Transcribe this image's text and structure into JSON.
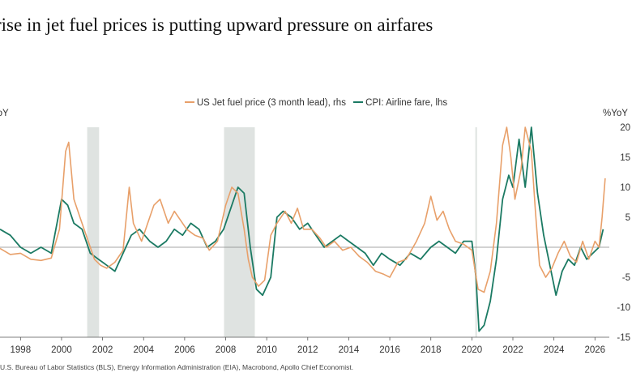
{
  "chart_data": {
    "type": "line",
    "title": "rise in jet fuel prices is putting upward pressure on airfares",
    "left_unit": "YoY",
    "right_unit": "%YoY",
    "colors": {
      "jet_fuel": "#e8a06a",
      "airline_fare": "#1b7a63",
      "recession": "#dfe3e1",
      "zero_line": "#888888"
    },
    "legend_position": "top-center",
    "grid": false,
    "x_range": [
      1997.0,
      2026.7
    ],
    "y_right_range": [
      -150,
      200
    ],
    "y_left_range": [
      -15,
      20
    ],
    "x_ticks": [
      "1998",
      "2000",
      "2002",
      "2004",
      "2006",
      "2008",
      "2010",
      "2012",
      "2014",
      "2016",
      "2018",
      "2020",
      "2022",
      "2024",
      "2026"
    ],
    "y_right_ticks": [
      "20",
      "15",
      "10",
      "5",
      "-5",
      "-10",
      "-15"
    ],
    "recession_bands": [
      [
        2001.25,
        2001.83
      ],
      [
        2007.92,
        2009.42
      ],
      [
        2020.17,
        2020.25
      ]
    ],
    "series": [
      {
        "name": "US Jet fuel price (3 month lead), rhs",
        "axis": "right",
        "x": [
          1997.0,
          1997.5,
          1998.0,
          1998.5,
          1999.0,
          1999.5,
          1999.9,
          2000.2,
          2000.35,
          2000.6,
          2000.9,
          2001.3,
          2001.6,
          2001.9,
          2002.2,
          2002.6,
          2003.0,
          2003.3,
          2003.5,
          2003.9,
          2004.2,
          2004.5,
          2004.8,
          2005.2,
          2005.5,
          2005.8,
          2006.1,
          2006.5,
          2006.9,
          2007.2,
          2007.6,
          2008.0,
          2008.3,
          2008.6,
          2008.9,
          2009.1,
          2009.3,
          2009.6,
          2009.9,
          2010.2,
          2010.5,
          2010.9,
          2011.2,
          2011.5,
          2011.8,
          2012.2,
          2012.6,
          2012.9,
          2013.3,
          2013.7,
          2014.1,
          2014.5,
          2014.9,
          2015.3,
          2015.7,
          2016.0,
          2016.4,
          2016.8,
          2017.3,
          2017.7,
          2018.0,
          2018.3,
          2018.6,
          2018.9,
          2019.2,
          2019.6,
          2020.0,
          2020.3,
          2020.6,
          2020.9,
          2021.2,
          2021.5,
          2021.7,
          2021.9,
          2022.1,
          2022.4,
          2022.6,
          2022.9,
          2023.1,
          2023.3,
          2023.6,
          2023.9,
          2024.2,
          2024.5,
          2024.8,
          2025.1,
          2025.4,
          2025.7,
          2026.0,
          2026.2,
          2026.35,
          2026.5
        ],
        "values": [
          -2,
          -12,
          -10,
          -20,
          -22,
          -18,
          30,
          160,
          175,
          80,
          50,
          10,
          -20,
          -30,
          -35,
          -25,
          -5,
          100,
          40,
          10,
          40,
          70,
          80,
          40,
          60,
          45,
          30,
          20,
          15,
          -5,
          10,
          70,
          100,
          90,
          30,
          -20,
          -50,
          -65,
          -55,
          20,
          40,
          60,
          40,
          65,
          30,
          30,
          15,
          0,
          10,
          -5,
          0,
          -15,
          -25,
          -40,
          -45,
          -50,
          -25,
          -20,
          10,
          40,
          85,
          45,
          60,
          30,
          10,
          5,
          -5,
          -70,
          -75,
          -40,
          40,
          170,
          205,
          150,
          80,
          130,
          200,
          160,
          60,
          -30,
          -50,
          -35,
          -10,
          10,
          -15,
          -25,
          10,
          -20,
          10,
          0,
          50,
          115
        ]
      },
      {
        "name": "CPI: Airline fare, lhs",
        "axis": "left",
        "x": [
          1997.0,
          1997.5,
          1998.0,
          1998.5,
          1999.0,
          1999.5,
          2000.0,
          2000.3,
          2000.6,
          2001.0,
          2001.4,
          2001.8,
          2002.2,
          2002.6,
          2003.0,
          2003.4,
          2003.8,
          2004.3,
          2004.7,
          2005.1,
          2005.5,
          2005.9,
          2006.3,
          2006.7,
          2007.1,
          2007.5,
          2007.9,
          2008.3,
          2008.6,
          2008.9,
          2009.2,
          2009.5,
          2009.8,
          2010.2,
          2010.5,
          2010.8,
          2011.2,
          2011.6,
          2012.0,
          2012.4,
          2012.8,
          2013.2,
          2013.6,
          2014.0,
          2014.4,
          2014.8,
          2015.2,
          2015.6,
          2016.0,
          2016.5,
          2017.0,
          2017.5,
          2018.0,
          2018.4,
          2018.8,
          2019.2,
          2019.6,
          2020.0,
          2020.2,
          2020.35,
          2020.6,
          2020.9,
          2021.2,
          2021.5,
          2021.8,
          2022.0,
          2022.3,
          2022.6,
          2022.9,
          2023.2,
          2023.5,
          2023.8,
          2024.1,
          2024.4,
          2024.7,
          2025.0,
          2025.3,
          2025.6,
          2025.9,
          2026.2,
          2026.4
        ],
        "values": [
          3,
          2,
          0,
          -1,
          0,
          -1,
          8,
          7,
          4,
          3,
          -1,
          -2,
          -3,
          -4,
          -1,
          2,
          3,
          1,
          0,
          1,
          3,
          2,
          4,
          3,
          0,
          1,
          3,
          7,
          10,
          9,
          0,
          -7,
          -8,
          -5,
          5,
          6,
          5,
          3,
          4,
          2,
          0,
          1,
          2,
          1,
          0,
          -1,
          -3,
          -1,
          -2,
          -3,
          -1,
          -2,
          0,
          1,
          0,
          -1,
          1,
          1,
          -5,
          -14,
          -13,
          -9,
          -2,
          8,
          12,
          10,
          18,
          10,
          20,
          9,
          2,
          -3,
          -8,
          -4,
          -2,
          -3,
          0,
          -2,
          -1,
          0,
          3
        ]
      }
    ],
    "source": "U.S. Bureau of Labor Statistics (BLS), Energy Information Administration (EIA), Macrobond, Apollo Chief Economist."
  }
}
